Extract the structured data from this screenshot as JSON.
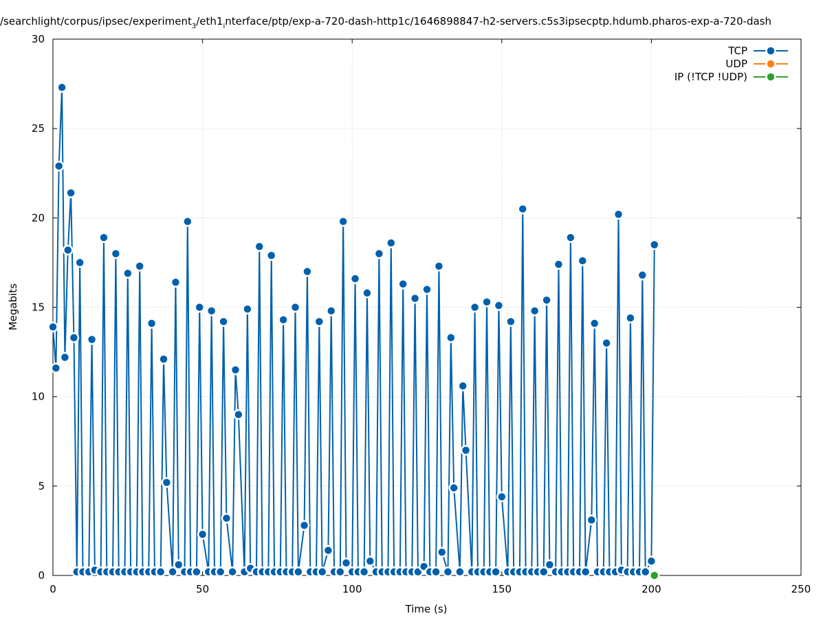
{
  "chart_data": {
    "type": "line",
    "title": "/searchlight/corpus/ipsec/experiment",
    "title_sub": "3",
    "title_mid": "/eth1",
    "title_sub2": "i",
    "title_tail": "nterface/ptp/exp-a-720-dash-http1c/1646898847-h2-servers.c5s3ipsecptp.hdumb.pharos-exp-a-720-dash",
    "xlabel": "Time (s)",
    "ylabel": "Megabits",
    "xlim": [
      0,
      250
    ],
    "ylim": [
      0,
      30
    ],
    "xticks": [
      "0",
      "50",
      "100",
      "150",
      "200",
      "250"
    ],
    "yticks": [
      "0",
      "5",
      "10",
      "15",
      "20",
      "25",
      "30"
    ],
    "grid": true,
    "legend_position": "top-right",
    "series": [
      {
        "name": "TCP",
        "color": "#0060ad",
        "points": [
          [
            0,
            13.9
          ],
          [
            1,
            11.6
          ],
          [
            2,
            22.9
          ],
          [
            3,
            27.3
          ],
          [
            4,
            12.2
          ],
          [
            5,
            18.2
          ],
          [
            6,
            21.4
          ],
          [
            7,
            13.3
          ],
          [
            8,
            0.2
          ],
          [
            9,
            17.5
          ],
          [
            10,
            0.2
          ],
          [
            12,
            0.2
          ],
          [
            13,
            13.2
          ],
          [
            14,
            0.3
          ],
          [
            16,
            0.2
          ],
          [
            17,
            18.9
          ],
          [
            18,
            0.2
          ],
          [
            20,
            0.2
          ],
          [
            21,
            18.0
          ],
          [
            22,
            0.2
          ],
          [
            24,
            0.2
          ],
          [
            25,
            16.9
          ],
          [
            26,
            0.2
          ],
          [
            28,
            0.2
          ],
          [
            29,
            17.3
          ],
          [
            30,
            0.2
          ],
          [
            32,
            0.2
          ],
          [
            33,
            14.1
          ],
          [
            34,
            0.2
          ],
          [
            36,
            0.2
          ],
          [
            37,
            12.1
          ],
          [
            38,
            5.2
          ],
          [
            40,
            0.2
          ],
          [
            41,
            16.4
          ],
          [
            42,
            0.6
          ],
          [
            44,
            0.2
          ],
          [
            45,
            19.8
          ],
          [
            46,
            0.2
          ],
          [
            48,
            0.2
          ],
          [
            49,
            15.0
          ],
          [
            50,
            2.3
          ],
          [
            52,
            0.2
          ],
          [
            53,
            14.8
          ],
          [
            54,
            0.2
          ],
          [
            56,
            0.2
          ],
          [
            57,
            14.2
          ],
          [
            58,
            3.2
          ],
          [
            60,
            0.2
          ],
          [
            61,
            11.5
          ],
          [
            62,
            9.0
          ],
          [
            64,
            0.2
          ],
          [
            65,
            14.9
          ],
          [
            66,
            0.4
          ],
          [
            68,
            0.2
          ],
          [
            69,
            18.4
          ],
          [
            70,
            0.2
          ],
          [
            72,
            0.2
          ],
          [
            73,
            17.9
          ],
          [
            74,
            0.2
          ],
          [
            76,
            0.2
          ],
          [
            77,
            14.3
          ],
          [
            78,
            0.2
          ],
          [
            80,
            0.2
          ],
          [
            81,
            15.0
          ],
          [
            82,
            0.2
          ],
          [
            84,
            2.8
          ],
          [
            85,
            17.0
          ],
          [
            86,
            0.2
          ],
          [
            88,
            0.2
          ],
          [
            89,
            14.2
          ],
          [
            90,
            0.2
          ],
          [
            92,
            1.4
          ],
          [
            93,
            14.8
          ],
          [
            94,
            0.2
          ],
          [
            96,
            0.2
          ],
          [
            97,
            19.8
          ],
          [
            98,
            0.7
          ],
          [
            100,
            0.2
          ],
          [
            101,
            16.6
          ],
          [
            102,
            0.2
          ],
          [
            104,
            0.2
          ],
          [
            105,
            15.8
          ],
          [
            106,
            0.8
          ],
          [
            108,
            0.2
          ],
          [
            109,
            18.0
          ],
          [
            110,
            0.2
          ],
          [
            112,
            0.2
          ],
          [
            113,
            18.6
          ],
          [
            114,
            0.2
          ],
          [
            116,
            0.2
          ],
          [
            117,
            16.3
          ],
          [
            118,
            0.2
          ],
          [
            120,
            0.2
          ],
          [
            121,
            15.5
          ],
          [
            122,
            0.2
          ],
          [
            124,
            0.5
          ],
          [
            125,
            16.0
          ],
          [
            126,
            0.2
          ],
          [
            128,
            0.2
          ],
          [
            129,
            17.3
          ],
          [
            130,
            1.3
          ],
          [
            132,
            0.2
          ],
          [
            133,
            13.3
          ],
          [
            134,
            4.9
          ],
          [
            136,
            0.2
          ],
          [
            137,
            10.6
          ],
          [
            138,
            7.0
          ],
          [
            140,
            0.2
          ],
          [
            141,
            15.0
          ],
          [
            142,
            0.2
          ],
          [
            144,
            0.2
          ],
          [
            145,
            15.3
          ],
          [
            146,
            0.2
          ],
          [
            148,
            0.2
          ],
          [
            149,
            15.1
          ],
          [
            150,
            4.4
          ],
          [
            152,
            0.2
          ],
          [
            153,
            14.2
          ],
          [
            154,
            0.2
          ],
          [
            156,
            0.2
          ],
          [
            157,
            20.5
          ],
          [
            158,
            0.2
          ],
          [
            160,
            0.2
          ],
          [
            161,
            14.8
          ],
          [
            162,
            0.2
          ],
          [
            164,
            0.2
          ],
          [
            165,
            15.4
          ],
          [
            166,
            0.6
          ],
          [
            168,
            0.2
          ],
          [
            169,
            17.4
          ],
          [
            170,
            0.2
          ],
          [
            172,
            0.2
          ],
          [
            173,
            18.9
          ],
          [
            174,
            0.2
          ],
          [
            176,
            0.2
          ],
          [
            177,
            17.6
          ],
          [
            178,
            0.2
          ],
          [
            180,
            3.1
          ],
          [
            181,
            14.1
          ],
          [
            182,
            0.2
          ],
          [
            184,
            0.2
          ],
          [
            185,
            13.0
          ],
          [
            186,
            0.2
          ],
          [
            188,
            0.2
          ],
          [
            189,
            20.2
          ],
          [
            190,
            0.3
          ],
          [
            192,
            0.2
          ],
          [
            193,
            14.4
          ],
          [
            194,
            0.2
          ],
          [
            196,
            0.2
          ],
          [
            197,
            16.8
          ],
          [
            198,
            0.2
          ],
          [
            200,
            0.8
          ],
          [
            201,
            18.5
          ]
        ]
      },
      {
        "name": "UDP",
        "color": "#ff7f0e",
        "points": []
      },
      {
        "name": "IP (!TCP  !UDP)",
        "color": "#2ca02c",
        "points": [
          [
            201,
            0.0
          ]
        ]
      }
    ]
  }
}
